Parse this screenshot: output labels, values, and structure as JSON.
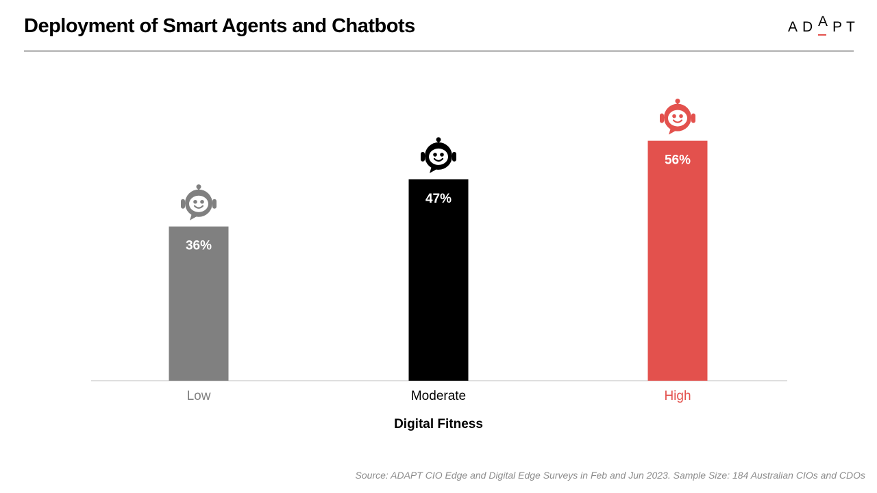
{
  "header": {
    "title": "Deployment of Smart Agents and Chatbots",
    "logo_letters": [
      "A",
      "D",
      "A",
      "P",
      "T"
    ]
  },
  "chart_data": {
    "type": "bar",
    "title": "Deployment of Smart Agents and Chatbots",
    "xlabel": "Digital Fitness",
    "ylabel": "",
    "categories": [
      "Low",
      "Moderate",
      "High"
    ],
    "values": [
      36,
      47,
      56
    ],
    "value_labels": [
      "36%",
      "47%",
      "56%"
    ],
    "colors": [
      "#808080",
      "#000000",
      "#e3514d"
    ],
    "icons": [
      "chatbot-icon",
      "chatbot-icon",
      "chatbot-icon"
    ],
    "ylim": [
      0,
      70
    ],
    "grid": false,
    "legend": "none"
  },
  "colors": {
    "accent": "#e3514d",
    "axis": "#bfbfbf",
    "footer_text": "#8c8c8c"
  },
  "footer": {
    "source": "Source: ADAPT CIO Edge and Digital Edge Surveys in Feb and Jun 2023. Sample Size: 184 Australian CIOs and CDOs"
  }
}
